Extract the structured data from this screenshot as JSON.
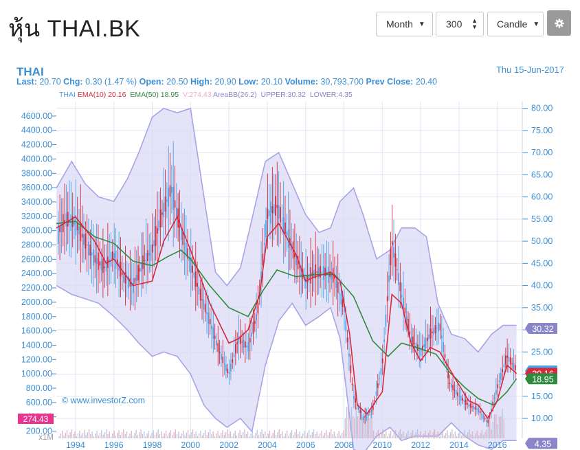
{
  "page": {
    "title": "หุ้น THAI.BK"
  },
  "controls": {
    "period": "Month",
    "bar_count": "300",
    "chart_type": "Candle",
    "settings_icon": "gear-icon",
    "dropdown_icon": "caret-down-icon"
  },
  "quote": {
    "symbol": "THAI",
    "date": "Thu 15-Jun-2017",
    "last_label": "Last:",
    "last": "20.70",
    "chg_label": "Chg:",
    "chg": "0.30 (1.47 %)",
    "open_label": "Open:",
    "open": "20.50",
    "high_label": "High:",
    "high": "20.90",
    "low_label": "Low:",
    "low": "20.10",
    "volume_label": "Volume:",
    "volume": "30,793,700",
    "prev_close_label": "Prev Close:",
    "prev_close": "20.40"
  },
  "legend": {
    "symbol": "THAI",
    "ema10": "EMA(10)",
    "ema10_value": "20.16",
    "ema50": "EMA(50)",
    "ema50_value": "18.95",
    "volume": "V:274.43",
    "bb": "AreaBB(26.2)",
    "upper": "UPPER:30.32",
    "lower": "LOWER:4.35"
  },
  "watermark": "© www.investorZ.com",
  "volume_marker": {
    "label": "274.43",
    "unit": "x1M"
  },
  "markers": {
    "upper": "30.32",
    "last": "20.70",
    "ema10": "20.16",
    "ema50": "18.95",
    "lower": "4.35"
  },
  "colors": {
    "price": "#4aa3e8",
    "ema10": "#d8283c",
    "ema50": "#2e8a3e",
    "bands": "#a9a3e6",
    "band_fill": "#dcd9f6",
    "axis": "#3b8fd6",
    "title": "#3b8fd6",
    "volume_marker": "#e8368f",
    "upper_marker": "#8a84c8"
  },
  "chart_data": {
    "type": "line",
    "title": "THAI",
    "x_ticks": [
      "1994",
      "1996",
      "1998",
      "2000",
      "2002",
      "2004",
      "2006",
      "2008",
      "2010",
      "2012",
      "2014",
      "2016"
    ],
    "left_axis_ticks": [
      "200.00",
      "400.00",
      "600.00",
      "800.00",
      "1000.00",
      "1200.00",
      "1400.00",
      "1600.00",
      "1800.00",
      "2000.00",
      "2200.00",
      "2400.00",
      "2600.00",
      "2800.00",
      "3000.00",
      "3200.00",
      "3400.00",
      "3600.00",
      "3800.00",
      "4000.00",
      "4200.00",
      "4400.00",
      "4600.00"
    ],
    "right_axis_ticks": [
      "10.00",
      "15.00",
      "20.00",
      "25.00",
      "30.00",
      "35.00",
      "40.00",
      "45.00",
      "50.00",
      "55.00",
      "60.00",
      "65.00",
      "70.00",
      "75.00",
      "80.00"
    ],
    "xlim": [
      1993,
      2017.3
    ],
    "ylim_right": [
      5.5,
      81.5
    ],
    "ylim_left": [
      100,
      4800
    ],
    "grid": true,
    "series": [
      {
        "name": "THAI",
        "x": [
          1993.1,
          1993.5,
          1994.0,
          1994.5,
          1995.0,
          1995.5,
          1996.0,
          1996.5,
          1997.0,
          1997.5,
          1998.0,
          1998.5,
          1999.0,
          1999.5,
          2000.0,
          2000.5,
          2001.0,
          2001.5,
          2002.0,
          2002.5,
          2003.0,
          2003.5,
          2004.0,
          2004.5,
          2005.0,
          2005.5,
          2006.0,
          2006.5,
          2007.0,
          2007.5,
          2008.0,
          2008.5,
          2009.0,
          2009.5,
          2010.0,
          2010.5,
          2011.0,
          2011.5,
          2012.0,
          2012.5,
          2013.0,
          2013.5,
          2014.0,
          2014.5,
          2015.0,
          2015.5,
          2016.0,
          2016.5,
          2017.0
        ],
        "y": [
          52,
          55,
          54,
          50,
          46,
          44,
          47,
          42,
          40,
          45,
          48,
          56,
          62,
          52,
          45,
          38,
          32,
          25,
          20,
          28,
          26,
          34,
          56,
          58,
          52,
          46,
          41,
          43,
          43,
          42,
          35,
          15,
          10,
          12,
          22,
          50,
          38,
          28,
          25,
          29,
          31,
          18,
          15,
          13,
          12,
          9,
          17,
          24,
          21
        ]
      },
      {
        "name": "EMA(10)",
        "x": [
          1993.0,
          1994.0,
          1995.0,
          1995.6,
          1996.0,
          1997.0,
          1998.0,
          1998.6,
          1999.3,
          2000.0,
          2001.0,
          2002.0,
          2002.5,
          2003.0,
          2003.6,
          2004.0,
          2004.6,
          2005.5,
          2006.0,
          2006.5,
          2007.3,
          2007.8,
          2008.3,
          2008.7,
          2009.2,
          2010.0,
          2010.5,
          2011.0,
          2011.5,
          2012.0,
          2012.5,
          2013.0,
          2013.8,
          2014.5,
          2015.0,
          2015.5,
          2016.0,
          2016.5,
          2017.0
        ],
        "y": [
          53,
          55.5,
          50,
          45,
          46,
          40,
          41,
          50,
          55.5,
          48,
          36,
          27,
          28,
          30,
          38,
          51,
          54,
          47,
          41,
          42,
          43,
          41,
          29,
          13,
          11,
          16,
          38,
          36,
          27,
          23,
          26,
          25,
          19,
          14,
          13,
          10,
          14,
          22,
          20.16
        ]
      },
      {
        "name": "EMA(50)",
        "x": [
          1993.0,
          1994.0,
          1995.0,
          1996.0,
          1997.0,
          1998.0,
          1998.8,
          1999.5,
          2000.0,
          2001.0,
          2002.0,
          2003.0,
          2003.8,
          2004.5,
          2005.5,
          2006.5,
          2007.5,
          2008.5,
          2009.5,
          2010.3,
          2011.0,
          2011.8,
          2012.8,
          2013.5,
          2014.3,
          2015.0,
          2015.8,
          2016.5,
          2017.0
        ],
        "y": [
          54,
          54.5,
          51,
          49.5,
          45.5,
          44.5,
          46.5,
          48,
          46,
          40,
          35,
          33,
          39,
          43.5,
          42,
          42.5,
          42.5,
          37.5,
          27.5,
          24,
          27,
          26,
          24.5,
          20.5,
          17,
          14.5,
          13,
          16,
          18.95
        ]
      },
      {
        "name": "UPPER",
        "x": [
          1993.0,
          1993.8,
          1994.5,
          1995.2,
          1996.0,
          1996.7,
          1997.3,
          1998.0,
          1998.6,
          1999.3,
          2000.0,
          2000.7,
          2001.3,
          2001.9,
          2002.6,
          2003.2,
          2003.9,
          2004.6,
          2005.3,
          2006.0,
          2006.7,
          2007.3,
          2007.8,
          2008.5,
          2009.0,
          2009.7,
          2010.4,
          2011.0,
          2011.7,
          2012.3,
          2012.9,
          2013.6,
          2014.3,
          2015.0,
          2015.7,
          2016.3,
          2017.0
        ],
        "y": [
          62,
          68,
          63,
          60,
          59,
          64,
          70,
          78,
          80,
          79,
          80,
          60,
          43,
          40,
          44,
          55,
          68,
          70,
          63,
          56,
          52,
          53,
          59,
          62,
          56,
          46,
          48,
          53,
          53,
          51,
          36,
          29,
          28,
          25,
          29,
          31,
          31
        ]
      },
      {
        "name": "LOWER",
        "x": [
          1993.0,
          1993.8,
          1994.5,
          1995.2,
          1996.0,
          1996.7,
          1997.3,
          1998.0,
          1998.6,
          1999.3,
          2000.0,
          2000.7,
          2001.3,
          2001.9,
          2002.6,
          2003.2,
          2003.9,
          2004.6,
          2005.3,
          2006.0,
          2006.7,
          2007.3,
          2007.8,
          2008.5,
          2009.0,
          2009.7,
          2010.4,
          2011.0,
          2011.7,
          2012.3,
          2012.9,
          2013.6,
          2014.3,
          2015.0,
          2015.7,
          2016.3,
          2017.0
        ],
        "y": [
          40,
          38,
          37,
          36,
          33,
          30,
          27,
          24,
          25,
          24,
          20,
          13,
          10,
          8,
          10,
          7,
          22,
          32,
          36,
          31,
          33,
          35,
          28,
          3,
          2,
          6,
          8,
          5,
          6,
          6,
          6,
          9,
          6,
          4,
          3,
          5,
          5
        ]
      }
    ]
  }
}
